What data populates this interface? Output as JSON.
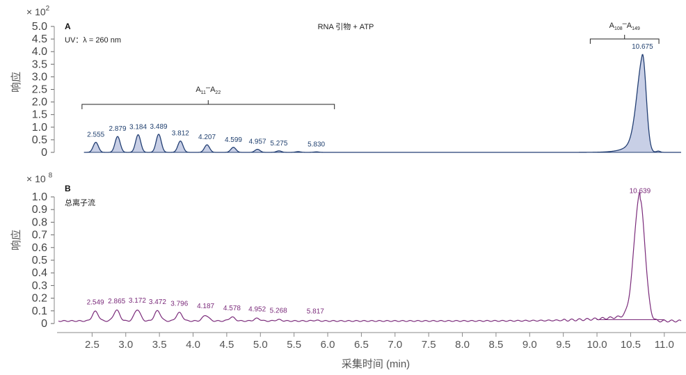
{
  "chart_data": [
    {
      "type": "area",
      "panel": "A",
      "title": "RNA 引物 + ATP",
      "subtitle": "UV：λ = 260 nm",
      "ylabel": "响应",
      "y_multiplier": "× 10",
      "y_multiplier_exp": "2",
      "yticks": [
        "5.0",
        "4.5",
        "4.0",
        "3.5",
        "3.0",
        "2.5",
        "2.0",
        "1.5",
        "1.0",
        "0.5",
        "0"
      ],
      "ylim": [
        0,
        5.0
      ],
      "color": "#233f73",
      "fill": "#c8cfe6",
      "peaks": [
        {
          "x": 2.555,
          "y": 0.4,
          "label": "2.555"
        },
        {
          "x": 2.879,
          "y": 0.63,
          "label": "2.879"
        },
        {
          "x": 3.184,
          "y": 0.7,
          "label": "3.184"
        },
        {
          "x": 3.489,
          "y": 0.72,
          "label": "3.489"
        },
        {
          "x": 3.812,
          "y": 0.45,
          "label": "3.812"
        },
        {
          "x": 4.207,
          "y": 0.3,
          "label": "4.207"
        },
        {
          "x": 4.599,
          "y": 0.2,
          "label": "4.599"
        },
        {
          "x": 4.957,
          "y": 0.12,
          "label": "4.957"
        },
        {
          "x": 5.275,
          "y": 0.06,
          "label": "5.275"
        },
        {
          "x": 5.56,
          "y": 0.03,
          "label": ""
        },
        {
          "x": 5.83,
          "y": 0.02,
          "label": "5.830"
        },
        {
          "x": 10.675,
          "y": 3.9,
          "label": "10.675"
        }
      ],
      "annotations": [
        {
          "base": "A",
          "sub1": "11",
          "sep": "–",
          "base2": "A",
          "sub2": "22",
          "x_start": 2.35,
          "x_end": 6.1
        },
        {
          "base": "A",
          "sub1": "108",
          "sep": "–",
          "base2": "A",
          "sub2": "149",
          "x_start": 9.9,
          "x_end": 10.92
        }
      ]
    },
    {
      "type": "line",
      "panel": "B",
      "title": "总离子流",
      "ylabel": "响应",
      "y_multiplier": "× 10",
      "y_multiplier_exp": "8",
      "yticks": [
        "1.0",
        "0.9",
        "0.8",
        "0.7",
        "0.6",
        "0.5",
        "0.4",
        "0.3",
        "0.2",
        "0.1",
        "0"
      ],
      "ylim": [
        0,
        1.0
      ],
      "color": "#7a2a7a",
      "peaks": [
        {
          "x": 2.549,
          "y": 0.075,
          "label": "2.549"
        },
        {
          "x": 2.865,
          "y": 0.085,
          "label": "2.865"
        },
        {
          "x": 3.172,
          "y": 0.09,
          "label": "3.172"
        },
        {
          "x": 3.472,
          "y": 0.08,
          "label": "3.472"
        },
        {
          "x": 3.796,
          "y": 0.065,
          "label": "3.796"
        },
        {
          "x": 4.187,
          "y": 0.045,
          "label": "4.187"
        },
        {
          "x": 4.578,
          "y": 0.03,
          "label": "4.578"
        },
        {
          "x": 4.952,
          "y": 0.02,
          "label": "4.952"
        },
        {
          "x": 5.268,
          "y": 0.01,
          "label": "5.268"
        },
        {
          "x": 5.817,
          "y": 0.005,
          "label": "5.817"
        },
        {
          "x": 10.639,
          "y": 0.955,
          "label": "10.639"
        }
      ],
      "baseline": 0.04
    }
  ],
  "x_axis": {
    "label": "采集时间 (min)",
    "xlim": [
      2.0,
      11.25
    ],
    "ticks": [
      "2.5",
      "3.0",
      "3.5",
      "4.0",
      "4.5",
      "5.0",
      "5.5",
      "6.0",
      "6.5",
      "7.0",
      "7.5",
      "8.0",
      "8.5",
      "9.0",
      "9.5",
      "10.0",
      "10.5",
      "11.0"
    ]
  }
}
